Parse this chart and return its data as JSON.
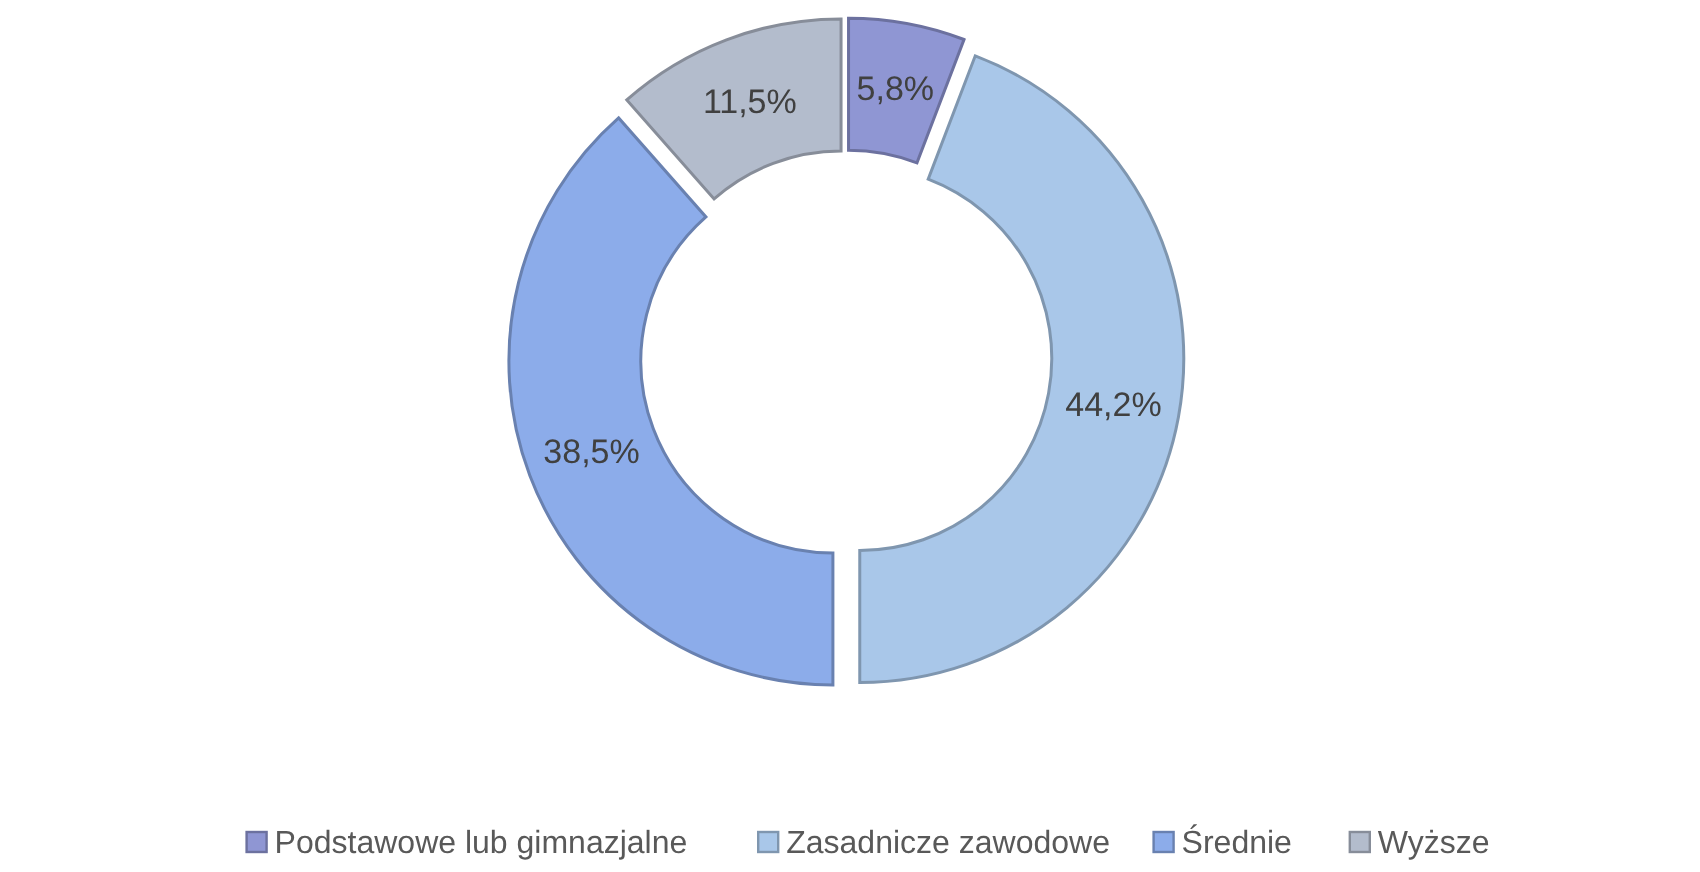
{
  "chart_data": {
    "type": "donut",
    "categories": [
      "Podstawowe lub gimnazjalne",
      "Zasadnicze zawodowe",
      "Średnie",
      "Wyższe"
    ],
    "values": [
      5.8,
      44.2,
      38.5,
      11.5
    ],
    "colors": [
      "#8f96d3",
      "#a9c7e9",
      "#8cacea",
      "#b3bccc"
    ],
    "data_labels": true,
    "value_labels": [
      "5,8%",
      "44,2%",
      "38,5%",
      "11,5%"
    ],
    "legend": "bottom"
  }
}
